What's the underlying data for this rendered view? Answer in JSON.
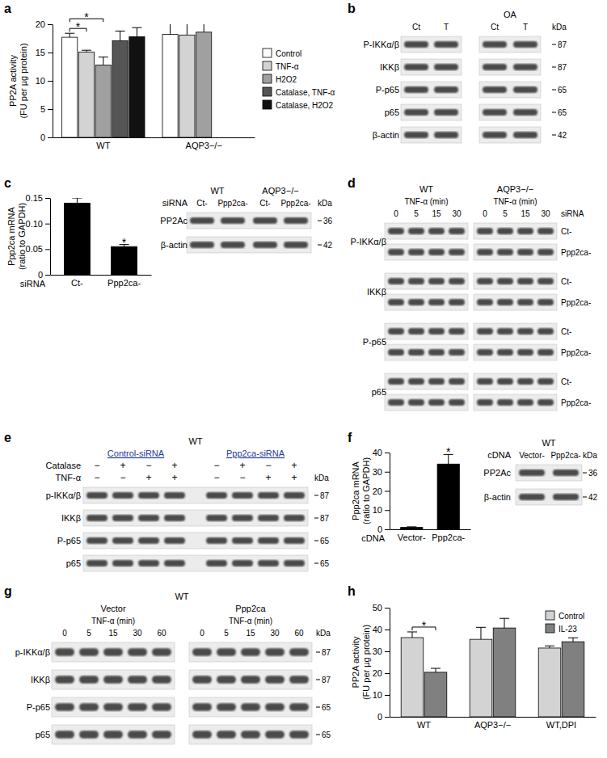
{
  "chart_data": [
    {
      "type": "bar",
      "panel": "a",
      "ylabel": [
        "PP2A activity",
        "(FU per µg protein)"
      ],
      "categories": [
        "WT",
        "AQP3−/−"
      ],
      "series": [
        {
          "name": "Control",
          "color": "#ffffff",
          "values": [
            17.7,
            18.2
          ],
          "errors": [
            0.7,
            2.7
          ]
        },
        {
          "name": "TNF-α",
          "color": "#d3d3d3",
          "values": [
            15.1,
            18.1
          ],
          "errors": [
            0.3,
            3.0
          ]
        },
        {
          "name": "H2O2",
          "color": "#a0a0a0",
          "values": [
            12.8,
            18.6
          ],
          "errors": [
            1.4,
            3.2
          ]
        },
        {
          "name": "Catalase, TNF-α",
          "color": "#555555",
          "values": [
            17.1,
            null
          ],
          "errors": [
            1.7,
            null
          ]
        },
        {
          "name": "Catalase, H2O2",
          "color": "#111111",
          "values": [
            17.8,
            null
          ],
          "errors": [
            1.6,
            null
          ]
        }
      ],
      "ylim": [
        0,
        20
      ],
      "yticks": [
        0,
        5,
        10,
        15,
        20
      ],
      "legend": "right",
      "annotations": [
        {
          "text": "*",
          "category": "WT",
          "between": [
            "Control",
            "TNF-α"
          ]
        },
        {
          "text": "*",
          "category": "WT",
          "between": [
            "Control",
            "H2O2"
          ]
        }
      ]
    },
    {
      "type": "bar",
      "panel": "c",
      "ylabel": [
        "Ppp2ca mRNA",
        "(ratio to GAPDH)"
      ],
      "xlabel": "siRNA",
      "categories": [
        "Ct-",
        "Ppp2ca-"
      ],
      "values": [
        0.14,
        0.055
      ],
      "errors": [
        0.01,
        0.004
      ],
      "color": "#000000",
      "ylim": [
        0,
        0.15
      ],
      "yticks": [
        0,
        0.05,
        {
          "value": 0.1,
          "label": "0.10"
        },
        0.15
      ],
      "annotations": [
        {
          "text": "*",
          "category": "Ppp2ca-"
        }
      ]
    },
    {
      "type": "bar",
      "panel": "f",
      "ylabel": [
        "Ppp2ca mRNA",
        "(ratio to GAPDH)"
      ],
      "xlabel": "cDNA",
      "categories": [
        "Vector-",
        "Ppp2ca-"
      ],
      "values": [
        1,
        34
      ],
      "errors": [
        0.3,
        5
      ],
      "color": "#000000",
      "ylim": [
        0,
        40
      ],
      "yticks": [
        0,
        10,
        20,
        30,
        40
      ],
      "annotations": [
        {
          "text": "*",
          "category": "Ppp2ca-"
        }
      ]
    },
    {
      "type": "bar",
      "panel": "h",
      "ylabel": [
        "PP2A activity",
        "(FU per µg protein)"
      ],
      "categories": [
        "WT",
        "AQP3−/−",
        "WT,DPI"
      ],
      "series": [
        {
          "name": "Control",
          "color": "#d3d3d3",
          "values": [
            36.3,
            35.5,
            31.5
          ],
          "errors": [
            2.6,
            5.5,
            1.0
          ]
        },
        {
          "name": "IL-23",
          "color": "#808080",
          "values": [
            20.4,
            40.7,
            34.4
          ],
          "errors": [
            1.8,
            4.4,
            1.8
          ]
        }
      ],
      "ylim": [
        0,
        50
      ],
      "yticks": [
        0,
        10,
        20,
        30,
        40,
        50
      ],
      "legend": "top-right",
      "annotations": [
        {
          "text": "*",
          "category": "WT",
          "between": [
            "Control",
            "IL-23"
          ]
        }
      ]
    }
  ],
  "blots": [
    {
      "panel": "b",
      "header": "OA",
      "lanes": [
        "Ct",
        "T",
        "Ct",
        "T"
      ],
      "kda_title": "kDa",
      "rows": [
        {
          "label": "P-IKKα/β",
          "kda": "87"
        },
        {
          "label": "IKKβ",
          "kda": "87"
        },
        {
          "label": "P-p65",
          "kda": "65"
        },
        {
          "label": "p65",
          "kda": "65"
        },
        {
          "label": "β-actin",
          "kda": "42"
        }
      ]
    },
    {
      "groups": [
        "WT",
        "AQP3−/−"
      ],
      "lane_title": "siRNA",
      "lanes": [
        "Ct-",
        "Ppp2ca-",
        "Ct-",
        "Ppp2ca-"
      ],
      "kda_title": "kDa",
      "rows": [
        {
          "label": "PP2Ac",
          "kda": "36"
        },
        {
          "label": "β-actin",
          "kda": "42"
        }
      ]
    },
    {
      "panel": "d",
      "groups": [
        {
          "label": "WT",
          "title": "TNF-α (min)",
          "lanes": [
            "0",
            "5",
            "15",
            "30"
          ]
        },
        {
          "label": "AQP3−/−",
          "title": "TNF-α (min)",
          "lanes": [
            "0",
            "5",
            "15",
            "30"
          ]
        }
      ],
      "conditions_title": "siRNA",
      "conditions": [
        "Ct-",
        "Ppp2ca-"
      ],
      "rows": [
        {
          "label": "P-IKKα/β"
        },
        {
          "label": "IKKβ"
        },
        {
          "label": "P-p65"
        },
        {
          "label": "p65"
        }
      ]
    },
    {
      "panel": "e",
      "title": "WT",
      "groups": [
        "Control-siRNA",
        "Ppp2ca-siRNA"
      ],
      "treatments": [
        {
          "label": "Catalase",
          "values": [
            "−",
            "+",
            "−",
            "+",
            "−",
            "+",
            "−",
            "+"
          ]
        },
        {
          "label": "TNF-α",
          "values": [
            "−",
            "−",
            "+",
            "+",
            "−",
            "−",
            "+",
            "+"
          ]
        }
      ],
      "kda_title": "kDa",
      "rows": [
        {
          "label": "p-IKKα/β",
          "kda": "87"
        },
        {
          "label": "IKKβ",
          "kda": "87"
        },
        {
          "label": "P-p65",
          "kda": "65"
        },
        {
          "label": "p65",
          "kda": "65"
        }
      ]
    },
    {
      "title": "WT",
      "lane_title": "cDNA",
      "lanes": [
        "Vector-",
        "Ppp2ca-"
      ],
      "kda_title": "kDa",
      "rows": [
        {
          "label": "PP2Ac",
          "kda": "36"
        },
        {
          "label": "β-actin",
          "kda": "42"
        }
      ]
    },
    {
      "panel": "g",
      "title": "WT",
      "groups": [
        {
          "label": "Vector",
          "title": "TNF-α (min)",
          "lanes": [
            "0",
            "5",
            "15",
            "30",
            "60"
          ]
        },
        {
          "label": "Ppp2ca",
          "title": "TNF-α (min)",
          "lanes": [
            "0",
            "5",
            "15",
            "30",
            "60"
          ]
        }
      ],
      "kda_title": "kDa",
      "rows": [
        {
          "label": "p-IKKα/β",
          "kda": "87"
        },
        {
          "label": "IKKβ",
          "kda": "87"
        },
        {
          "label": "P-p65",
          "kda": "65"
        },
        {
          "label": "p65",
          "kda": "65"
        }
      ]
    }
  ]
}
